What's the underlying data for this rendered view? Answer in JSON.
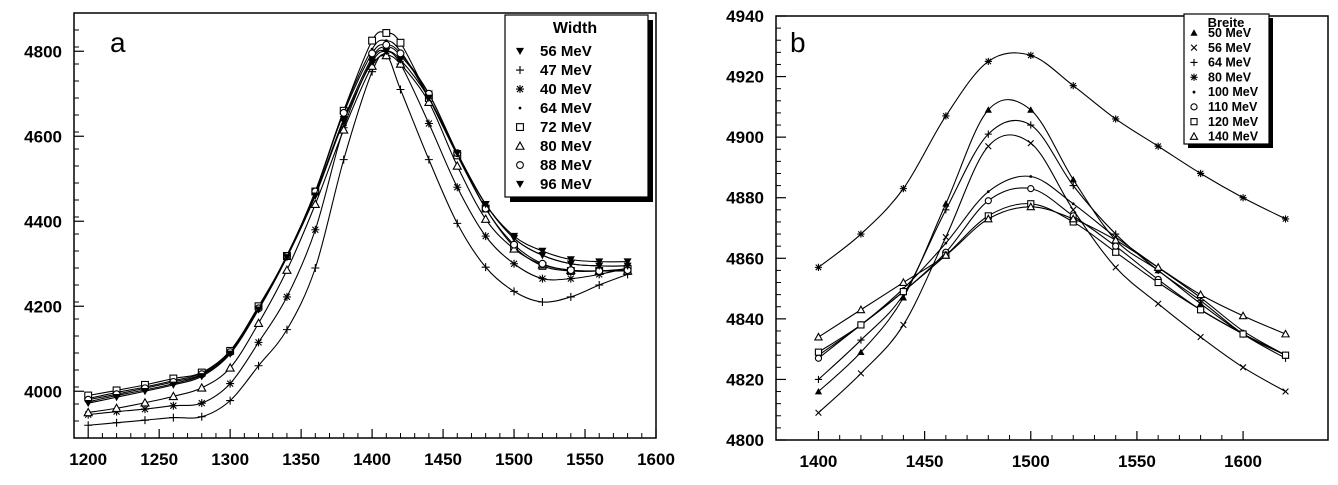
{
  "chart_data": [
    {
      "type": "line",
      "panel_label": "a",
      "title": "",
      "xlabel": "",
      "ylabel": "",
      "xlim": [
        1190,
        1600
      ],
      "ylim": [
        3890,
        4890
      ],
      "x_ticks": [
        1200,
        1250,
        1300,
        1350,
        1400,
        1450,
        1500,
        1550,
        1600
      ],
      "y_ticks": [
        4000,
        4200,
        4400,
        4600,
        4800
      ],
      "grid": false,
      "legend": {
        "title": "Width",
        "position": "top-right"
      },
      "x": [
        1200,
        1220,
        1240,
        1260,
        1280,
        1300,
        1320,
        1340,
        1360,
        1380,
        1400,
        1410,
        1420,
        1440,
        1460,
        1480,
        1500,
        1520,
        1540,
        1560,
        1580
      ],
      "series": [
        {
          "name": "56 MeV",
          "marker": "triangle-down",
          "values": [
            3975,
            3990,
            4003,
            4018,
            4038,
            4090,
            4195,
            4320,
            4465,
            4640,
            4785,
            4810,
            4790,
            4700,
            4560,
            4440,
            4365,
            4330,
            4310,
            4305,
            4305
          ]
        },
        {
          "name": "47 MeV",
          "marker": "plus",
          "values": [
            3920,
            3926,
            3932,
            3938,
            3940,
            3978,
            4060,
            4145,
            4290,
            4545,
            4752,
            4790,
            4710,
            4545,
            4395,
            4292,
            4235,
            4210,
            4222,
            4250,
            4275
          ]
        },
        {
          "name": "40 MeV",
          "marker": "asterisk",
          "values": [
            3945,
            3952,
            3958,
            3966,
            3972,
            4018,
            4115,
            4222,
            4380,
            4620,
            4780,
            4800,
            4770,
            4630,
            4480,
            4365,
            4300,
            4265,
            4265,
            4275,
            4290
          ]
        },
        {
          "name": "64 MeV",
          "marker": "dot",
          "values": [
            3983,
            3997,
            4010,
            4025,
            4043,
            4095,
            4198,
            4318,
            4470,
            4660,
            4805,
            4825,
            4800,
            4690,
            4560,
            4440,
            4360,
            4320,
            4300,
            4295,
            4295
          ]
        },
        {
          "name": "72 MeV",
          "marker": "square",
          "values": [
            3990,
            4002,
            4015,
            4030,
            4044,
            4095,
            4200,
            4318,
            4470,
            4660,
            4825,
            4843,
            4820,
            4690,
            4555,
            4430,
            4340,
            4295,
            4283,
            4283,
            4288
          ]
        },
        {
          "name": "80 MeV",
          "marker": "triangle-up",
          "values": [
            3950,
            3960,
            3973,
            3988,
            4008,
            4055,
            4160,
            4285,
            4440,
            4615,
            4765,
            4790,
            4770,
            4680,
            4530,
            4405,
            4335,
            4298,
            4285,
            4283,
            4283
          ]
        },
        {
          "name": "88 MeV",
          "marker": "circle",
          "values": [
            3980,
            3993,
            4007,
            4022,
            4040,
            4092,
            4195,
            4318,
            4470,
            4655,
            4795,
            4815,
            4795,
            4700,
            4560,
            4430,
            4345,
            4300,
            4285,
            4283,
            4285
          ]
        },
        {
          "name": "96 MeV",
          "marker": "triangle-down",
          "values": [
            3972,
            3986,
            4000,
            4015,
            4035,
            4088,
            4192,
            4315,
            4460,
            4635,
            4775,
            4800,
            4780,
            4690,
            4560,
            4440,
            4360,
            4320,
            4300,
            4295,
            4295
          ]
        }
      ]
    },
    {
      "type": "line",
      "panel_label": "b",
      "title": "",
      "xlabel": "",
      "ylabel": "",
      "xlim": [
        1380,
        1640
      ],
      "ylim": [
        4800,
        4940
      ],
      "x_ticks": [
        1400,
        1450,
        1500,
        1550,
        1600
      ],
      "y_ticks": [
        4800,
        4820,
        4840,
        4860,
        4880,
        4900,
        4920,
        4940
      ],
      "grid": false,
      "legend": {
        "title": "Breite",
        "position": "top-right"
      },
      "x": [
        1400,
        1420,
        1440,
        1460,
        1480,
        1500,
        1520,
        1540,
        1560,
        1580,
        1600,
        1620
      ],
      "series": [
        {
          "name": "50 MeV",
          "marker": "triangle-up-filled",
          "values": [
            4816,
            4829,
            4847,
            4878,
            4909,
            4909,
            4886,
            4866,
            4856,
            4845,
            4835,
            4828
          ]
        },
        {
          "name": "56 MeV",
          "marker": "cross",
          "values": [
            4809,
            4822,
            4838,
            4867,
            4897,
            4898,
            4876,
            4857,
            4845,
            4834,
            4824,
            4816
          ]
        },
        {
          "name": "64 MeV",
          "marker": "plus",
          "values": [
            4820,
            4833,
            4848,
            4876,
            4901,
            4904,
            4884,
            4868,
            4856,
            4846,
            4835,
            4827
          ]
        },
        {
          "name": "80 MeV",
          "marker": "asterisk",
          "values": [
            4857,
            4868,
            4883,
            4907,
            4925,
            4927,
            4917,
            4906,
            4897,
            4888,
            4880,
            4873
          ]
        },
        {
          "name": "100 MeV",
          "marker": "dot",
          "values": [
            4828,
            4838,
            4850,
            4865,
            4882,
            4887,
            4878,
            4867,
            4857,
            4847,
            4836,
            4828
          ]
        },
        {
          "name": "110 MeV",
          "marker": "circle",
          "values": [
            4827,
            4838,
            4849,
            4862,
            4879,
            4883,
            4874,
            4864,
            4853,
            4843,
            4835,
            4828
          ]
        },
        {
          "name": "120 MeV",
          "marker": "square",
          "values": [
            4829,
            4838,
            4849,
            4861,
            4874,
            4878,
            4872,
            4862,
            4852,
            4843,
            4835,
            4828
          ]
        },
        {
          "name": "140 MeV",
          "marker": "triangle-up",
          "values": [
            4834,
            4843,
            4852,
            4861,
            4873,
            4877,
            4873,
            4866,
            4857,
            4848,
            4841,
            4835
          ]
        }
      ]
    }
  ]
}
